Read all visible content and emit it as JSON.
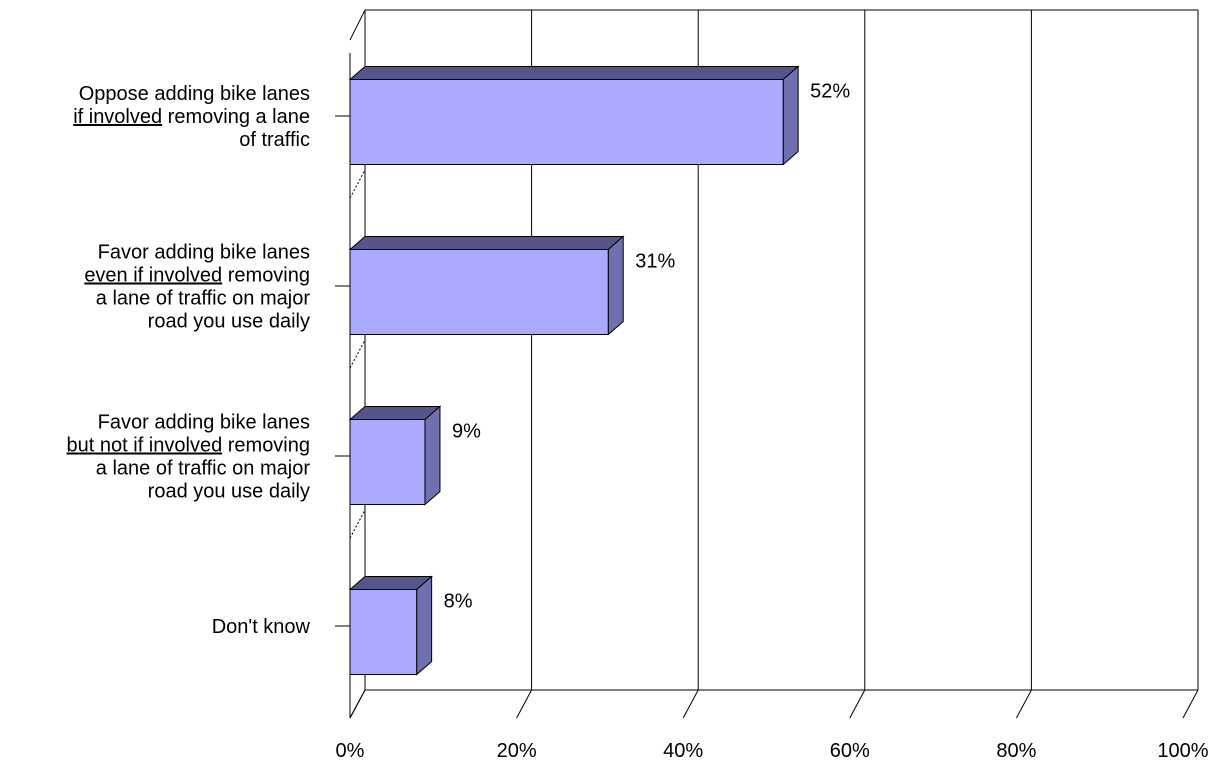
{
  "chart_data": {
    "type": "bar",
    "orientation": "horizontal",
    "style": "3d",
    "grid": true,
    "xlim": [
      0,
      100
    ],
    "xticks": [
      "0%",
      "20%",
      "40%",
      "60%",
      "80%",
      "100%"
    ],
    "categories": [
      {
        "lines": [
          {
            "segments": [
              {
                "text": "Oppose adding bike lanes",
                "underline": false
              }
            ]
          },
          {
            "segments": [
              {
                "text": "if involved",
                "underline": true
              },
              {
                "text": " removing a lane",
                "underline": false
              }
            ]
          },
          {
            "segments": [
              {
                "text": "of traffic",
                "underline": false
              }
            ]
          }
        ]
      },
      {
        "lines": [
          {
            "segments": [
              {
                "text": "Favor adding bike lanes",
                "underline": false
              }
            ]
          },
          {
            "segments": [
              {
                "text": "even if involved",
                "underline": true
              },
              {
                "text": " removing",
                "underline": false
              }
            ]
          },
          {
            "segments": [
              {
                "text": "a lane of traffic on major",
                "underline": false
              }
            ]
          },
          {
            "segments": [
              {
                "text": "road you use daily",
                "underline": false
              }
            ]
          }
        ]
      },
      {
        "lines": [
          {
            "segments": [
              {
                "text": "Favor adding bike lanes",
                "underline": false
              }
            ]
          },
          {
            "segments": [
              {
                "text": "but not if involved",
                "underline": true
              },
              {
                "text": " removing",
                "underline": false
              }
            ]
          },
          {
            "segments": [
              {
                "text": "a lane of traffic on major",
                "underline": false
              }
            ]
          },
          {
            "segments": [
              {
                "text": "road you use daily",
                "underline": false
              }
            ]
          }
        ]
      },
      {
        "lines": [
          {
            "segments": [
              {
                "text": "Don't know",
                "underline": false
              }
            ]
          }
        ]
      }
    ],
    "values": [
      52,
      31,
      9,
      8
    ],
    "data_labels": [
      "52%",
      "31%",
      "9%",
      "8%"
    ],
    "colors": {
      "bar_front": "#aaaaff",
      "bar_top": "#55558a",
      "bar_side": "#7070b0",
      "axis": "#000000",
      "grid": "#000000"
    }
  }
}
